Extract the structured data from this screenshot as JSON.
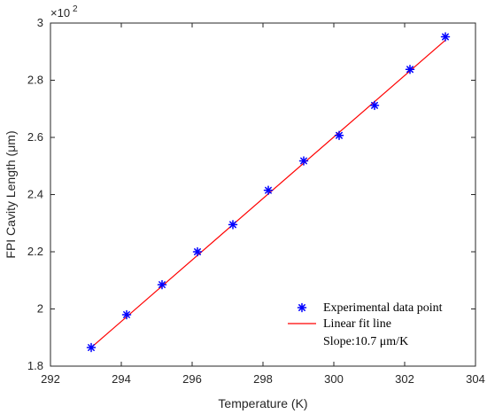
{
  "chart_data": {
    "type": "scatter",
    "xlabel": "Temperature (K)",
    "ylabel": "FPI Cavity Length (μm)",
    "xlim": [
      292,
      304
    ],
    "ylim": [
      1.8,
      3.0
    ],
    "y_multiplier": {
      "base": "×10",
      "exponent": "2"
    },
    "x_ticks": [
      "292",
      "294",
      "296",
      "298",
      "300",
      "302",
      "304"
    ],
    "x_tick_values": [
      292,
      294,
      296,
      298,
      300,
      302,
      304
    ],
    "y_ticks": [
      "1.8",
      "2",
      "2.2",
      "2.4",
      "2.6",
      "2.8",
      "3"
    ],
    "y_tick_values": [
      1.8,
      2.0,
      2.2,
      2.4,
      2.6,
      2.8,
      3.0
    ],
    "grid": false,
    "legend_position": "bottom-right",
    "series": [
      {
        "name": "Experimental data point",
        "type": "scatter",
        "marker": "asterisk",
        "color": "#0000ff",
        "x": [
          293.15,
          294.15,
          295.15,
          296.15,
          297.15,
          298.15,
          299.15,
          300.15,
          301.15,
          302.15,
          303.15
        ],
        "y": [
          1.865,
          1.98,
          2.085,
          2.2,
          2.295,
          2.415,
          2.518,
          2.607,
          2.712,
          2.838,
          2.952
        ]
      },
      {
        "name": "Linear fit line",
        "type": "line",
        "color": "#ff0000",
        "x": [
          293.15,
          303.15
        ],
        "y": [
          1.865,
          2.94
        ]
      }
    ],
    "annotation": "Slope:10.7 μm/K"
  }
}
